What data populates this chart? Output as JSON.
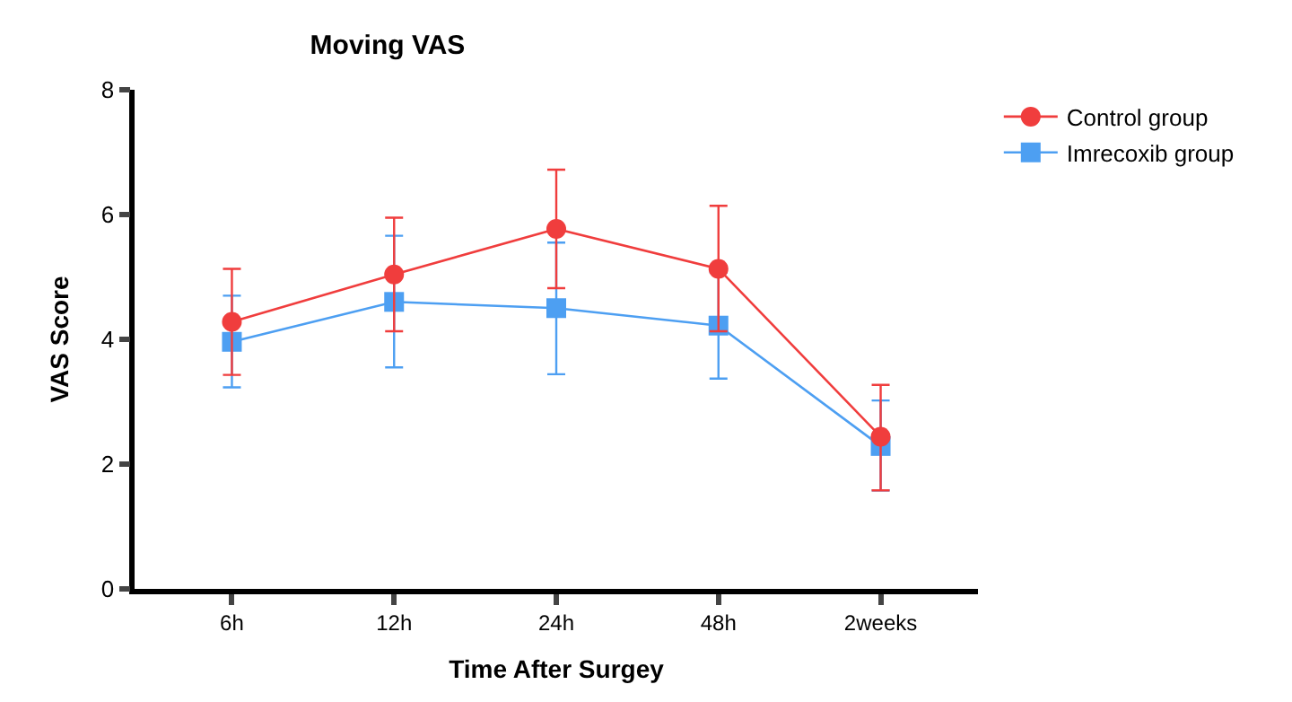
{
  "chart_data": {
    "type": "line",
    "title": "Moving VAS",
    "xlabel": "Time After Surgey",
    "ylabel": "VAS Score",
    "categories": [
      "6h",
      "12h",
      "24h",
      "48h",
      "2weeks"
    ],
    "ylim": [
      0,
      8
    ],
    "yticks": [
      0,
      2,
      4,
      6,
      8
    ],
    "legend": "top right",
    "series": [
      {
        "name": "Control group",
        "color": "#f03d3d",
        "marker": "circle",
        "values": [
          4.28,
          5.04,
          5.77,
          5.13,
          2.44
        ],
        "errors": [
          [
            3.43,
            5.13
          ],
          [
            4.13,
            5.95
          ],
          [
            4.82,
            6.72
          ],
          [
            4.13,
            6.14
          ],
          [
            1.58,
            3.27
          ]
        ]
      },
      {
        "name": "Imrecoxib group",
        "color": "#4d9ff2",
        "marker": "square",
        "values": [
          3.96,
          4.6,
          4.5,
          4.22,
          2.29
        ],
        "errors": [
          [
            3.23,
            4.7
          ],
          [
            3.55,
            5.66
          ],
          [
            3.44,
            5.55
          ],
          [
            3.37,
            5.07
          ],
          [
            1.58,
            3.02
          ]
        ]
      }
    ]
  }
}
